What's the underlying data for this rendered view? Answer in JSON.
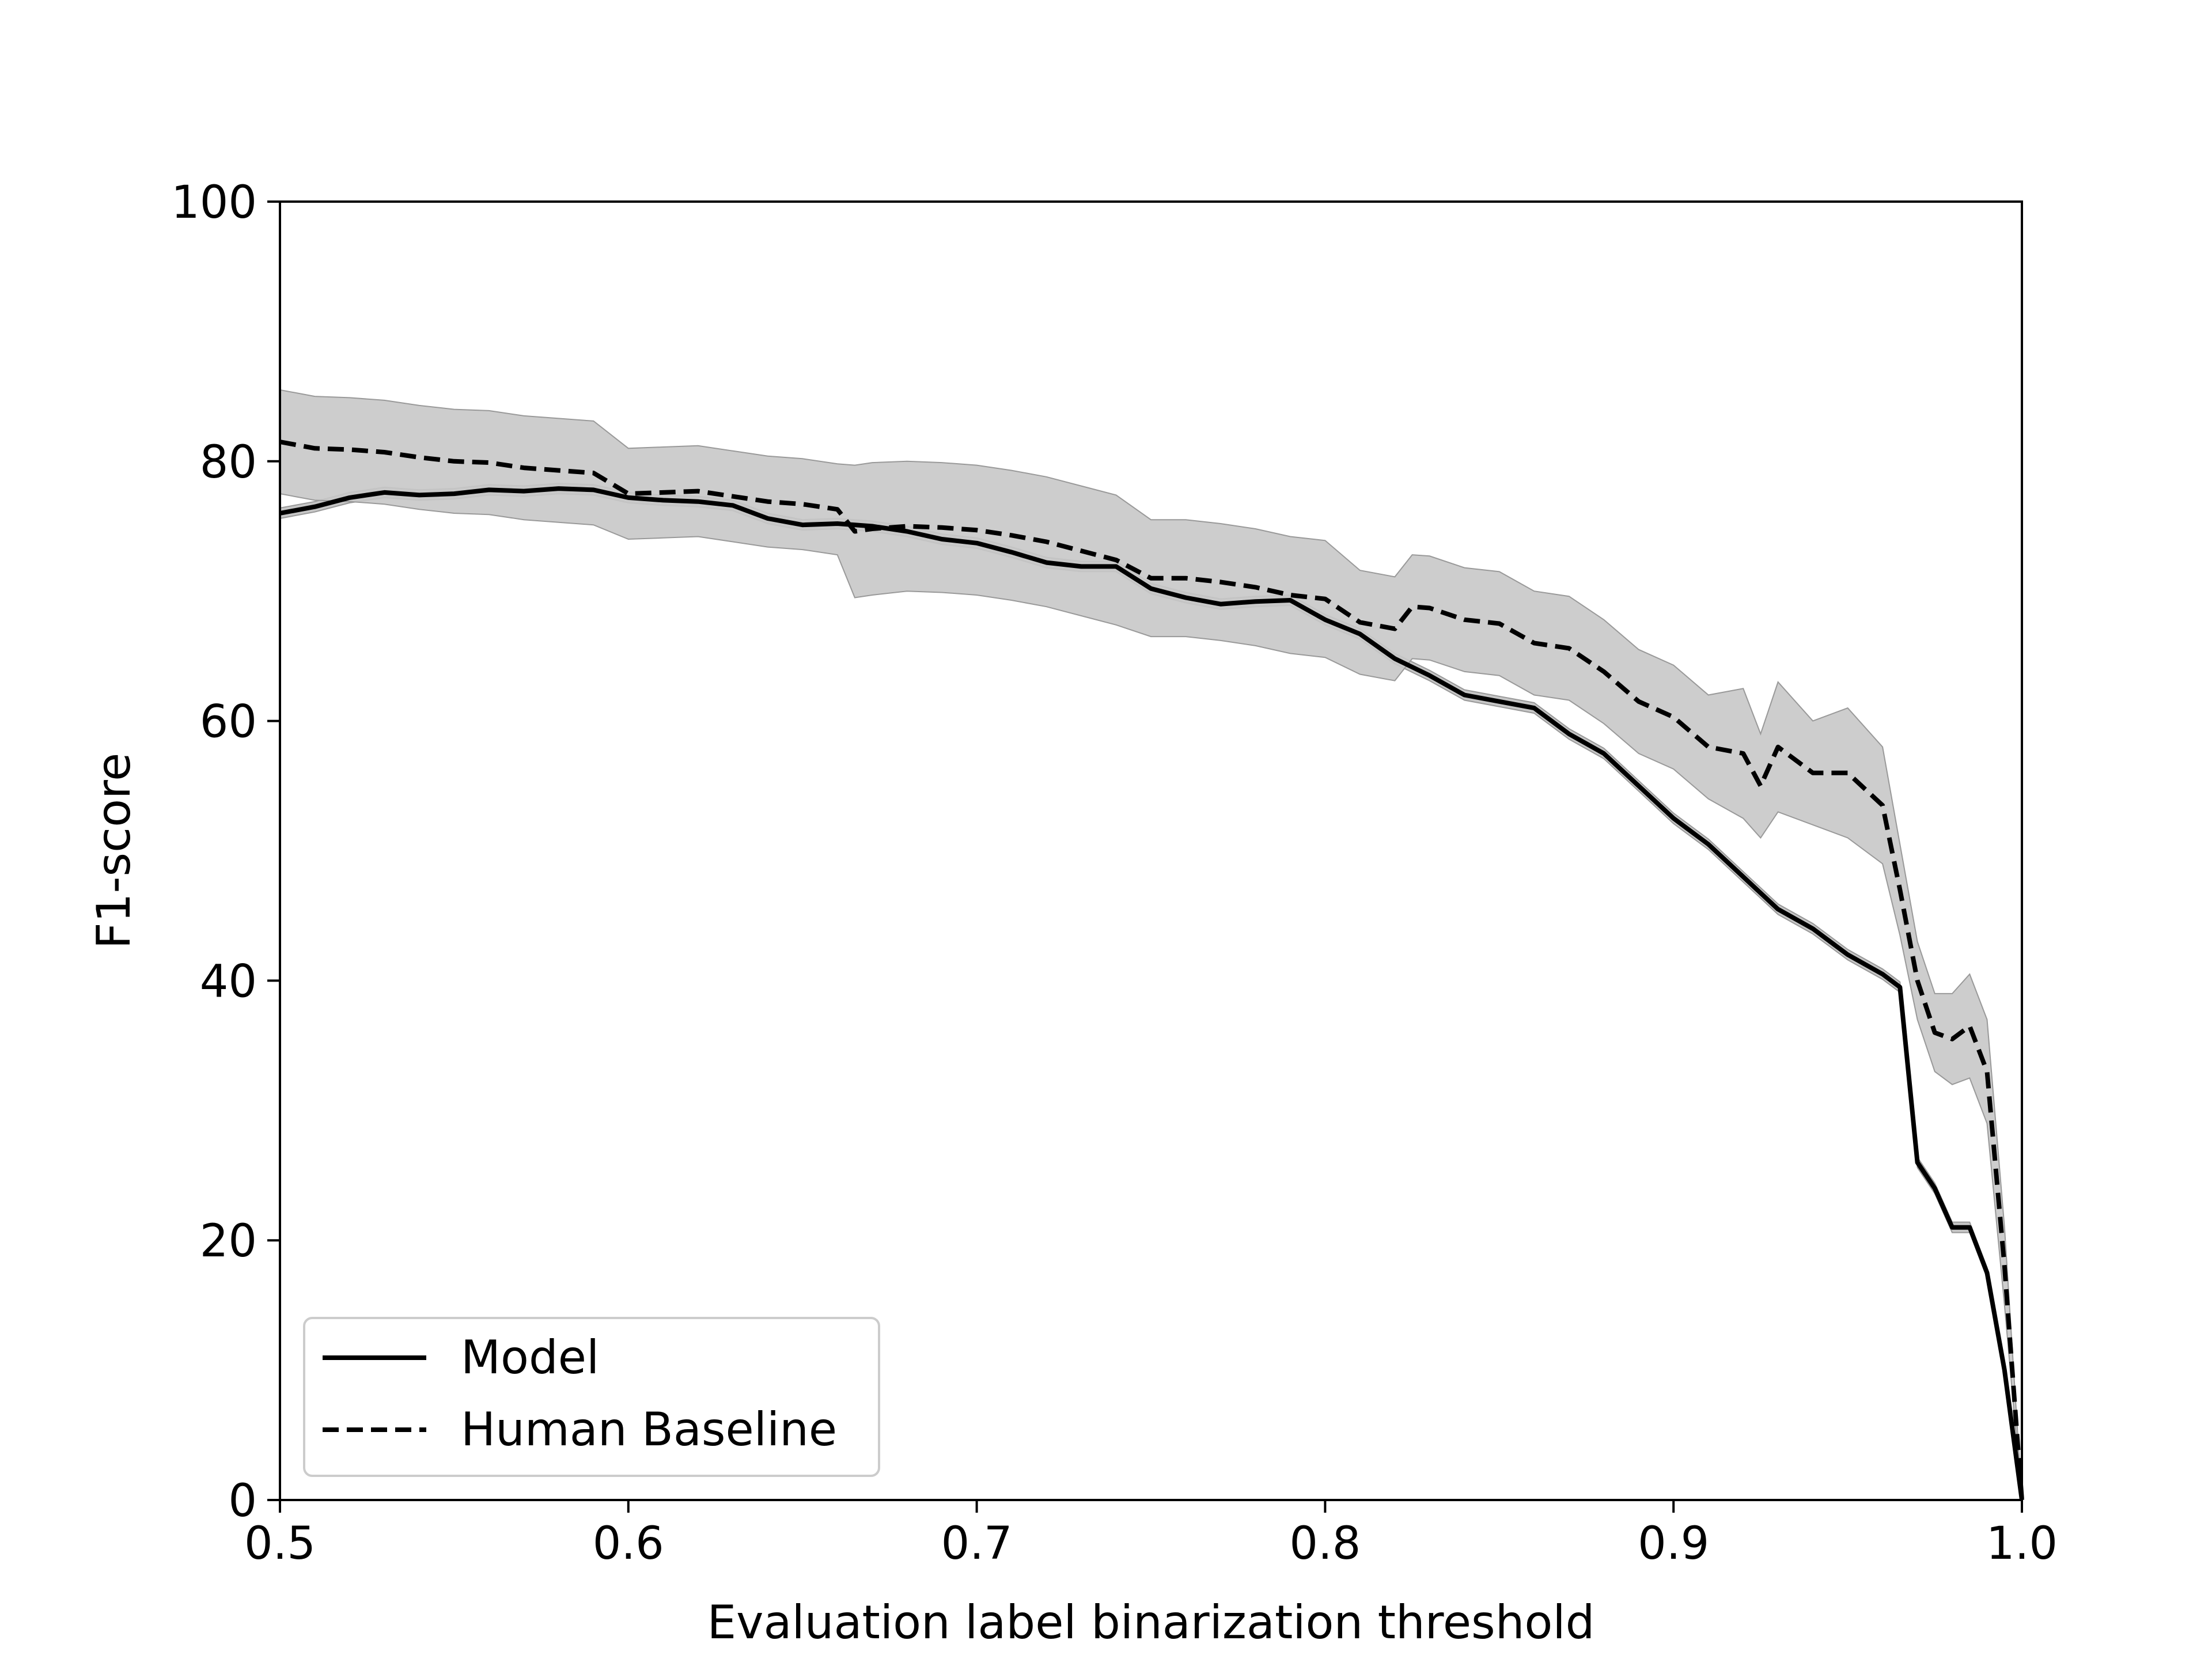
{
  "chart_data": {
    "type": "line",
    "title": "",
    "xlabel": "Evaluation label binarization threshold",
    "ylabel": "F1-score",
    "xlim": [
      0.5,
      1.0
    ],
    "ylim": [
      0,
      100
    ],
    "xticks": [
      0.5,
      0.6,
      0.7,
      0.8,
      0.9,
      1.0
    ],
    "xtick_labels": [
      "0.5",
      "0.6",
      "0.7",
      "0.8",
      "0.9",
      "1.0"
    ],
    "yticks": [
      0,
      20,
      40,
      60,
      80,
      100
    ],
    "ytick_labels": [
      "0",
      "20",
      "40",
      "60",
      "80",
      "100"
    ],
    "grid": false,
    "legend_position": "lower-left",
    "series": [
      {
        "name": "Model",
        "style": "solid",
        "color": "#000000",
        "band_color": "#808080",
        "x": [
          0.5,
          0.51,
          0.52,
          0.53,
          0.54,
          0.55,
          0.56,
          0.57,
          0.58,
          0.59,
          0.6,
          0.61,
          0.62,
          0.63,
          0.64,
          0.65,
          0.66,
          0.67,
          0.68,
          0.69,
          0.7,
          0.71,
          0.72,
          0.73,
          0.74,
          0.75,
          0.76,
          0.77,
          0.78,
          0.79,
          0.8,
          0.81,
          0.82,
          0.83,
          0.84,
          0.85,
          0.86,
          0.87,
          0.88,
          0.89,
          0.9,
          0.91,
          0.92,
          0.93,
          0.94,
          0.95,
          0.96,
          0.965,
          0.97,
          0.975,
          0.98,
          0.985,
          0.99,
          0.995,
          1.0
        ],
        "y": [
          76,
          76.5,
          77.2,
          77.6,
          77.4,
          77.5,
          77.8,
          77.7,
          77.9,
          77.8,
          77.2,
          77.0,
          76.9,
          76.6,
          75.6,
          75.1,
          75.2,
          75.0,
          74.6,
          74.0,
          73.7,
          73.0,
          72.2,
          71.9,
          71.9,
          70.2,
          69.5,
          69.0,
          69.2,
          69.3,
          67.8,
          66.7,
          64.8,
          63.5,
          62.0,
          61.5,
          61.0,
          59.0,
          57.5,
          55.0,
          52.5,
          50.5,
          48.0,
          45.5,
          44.0,
          42.0,
          40.5,
          39.5,
          26.0,
          24.0,
          21.0,
          21.0,
          17.5,
          10.0,
          0
        ],
        "y_lower": [
          75.6,
          76.1,
          76.8,
          77.2,
          77.0,
          77.1,
          77.4,
          77.3,
          77.5,
          77.4,
          76.8,
          76.6,
          76.5,
          76.2,
          75.2,
          74.7,
          74.8,
          74.6,
          74.2,
          73.6,
          73.3,
          72.6,
          71.8,
          71.5,
          71.5,
          69.8,
          69.1,
          68.6,
          68.8,
          68.9,
          67.4,
          66.3,
          64.4,
          63.1,
          61.6,
          61.1,
          60.6,
          58.6,
          57.1,
          54.6,
          52.1,
          50.1,
          47.6,
          45.1,
          43.6,
          41.6,
          40.1,
          39.1,
          25.6,
          23.6,
          20.6,
          20.6,
          17.1,
          9.6,
          0
        ],
        "y_upper": [
          76.4,
          76.9,
          77.6,
          78.0,
          77.8,
          77.9,
          78.2,
          78.1,
          78.3,
          78.2,
          77.6,
          77.4,
          77.3,
          77.0,
          76.0,
          75.5,
          75.6,
          75.4,
          75.0,
          74.4,
          74.1,
          73.4,
          72.6,
          72.3,
          72.3,
          70.6,
          69.9,
          69.4,
          69.6,
          69.7,
          68.2,
          67.1,
          65.2,
          63.9,
          62.4,
          61.9,
          61.4,
          59.4,
          57.9,
          55.4,
          52.9,
          50.9,
          48.4,
          45.9,
          44.4,
          42.4,
          40.9,
          39.9,
          26.4,
          24.4,
          21.4,
          21.4,
          17.9,
          10.4,
          0.4
        ]
      },
      {
        "name": "Human Baseline",
        "style": "dashed",
        "color": "#000000",
        "band_color": "#c8c8c8",
        "x": [
          0.5,
          0.51,
          0.52,
          0.53,
          0.54,
          0.55,
          0.56,
          0.57,
          0.58,
          0.59,
          0.6,
          0.61,
          0.62,
          0.63,
          0.64,
          0.65,
          0.66,
          0.665,
          0.67,
          0.68,
          0.69,
          0.7,
          0.71,
          0.72,
          0.73,
          0.74,
          0.75,
          0.76,
          0.77,
          0.78,
          0.79,
          0.8,
          0.81,
          0.82,
          0.825,
          0.83,
          0.84,
          0.85,
          0.86,
          0.87,
          0.88,
          0.89,
          0.9,
          0.91,
          0.92,
          0.925,
          0.93,
          0.94,
          0.95,
          0.96,
          0.965,
          0.97,
          0.975,
          0.98,
          0.985,
          0.99,
          0.995,
          1.0
        ],
        "y": [
          81.5,
          81.0,
          80.9,
          80.7,
          80.3,
          80.0,
          79.9,
          79.5,
          79.3,
          79.1,
          77.5,
          77.6,
          77.7,
          77.3,
          76.9,
          76.7,
          76.3,
          74.6,
          74.8,
          75.0,
          74.9,
          74.7,
          74.3,
          73.8,
          73.1,
          72.4,
          71.0,
          71.0,
          70.7,
          70.3,
          69.7,
          69.4,
          67.6,
          67.1,
          68.8,
          68.7,
          67.8,
          67.5,
          66.0,
          65.6,
          63.8,
          61.5,
          60.3,
          58.0,
          57.5,
          55.0,
          58.0,
          56.0,
          56.0,
          53.5,
          47.0,
          40.0,
          36.0,
          35.5,
          36.5,
          33.0,
          18.0,
          0
        ],
        "y_lower": [
          77.5,
          77.0,
          76.9,
          76.7,
          76.3,
          76.0,
          75.9,
          75.5,
          75.3,
          75.1,
          74.0,
          74.1,
          74.2,
          73.8,
          73.4,
          73.2,
          72.8,
          69.5,
          69.7,
          70.0,
          69.9,
          69.7,
          69.3,
          68.8,
          68.1,
          67.4,
          66.5,
          66.5,
          66.2,
          65.8,
          65.2,
          64.9,
          63.6,
          63.1,
          64.8,
          64.7,
          63.8,
          63.5,
          62.0,
          61.6,
          59.8,
          57.5,
          56.3,
          54.0,
          52.5,
          51.0,
          53.0,
          52.0,
          51.0,
          49.0,
          43.5,
          37.0,
          33.0,
          32.0,
          32.5,
          29.0,
          15.0,
          0
        ],
        "y_upper": [
          85.5,
          85.0,
          84.9,
          84.7,
          84.3,
          84.0,
          83.9,
          83.5,
          83.3,
          83.1,
          81.0,
          81.1,
          81.2,
          80.8,
          80.4,
          80.2,
          79.8,
          79.7,
          79.9,
          80.0,
          79.9,
          79.7,
          79.3,
          78.8,
          78.1,
          77.4,
          75.5,
          75.5,
          75.2,
          74.8,
          74.2,
          73.9,
          71.6,
          71.1,
          72.8,
          72.7,
          71.8,
          71.5,
          70.0,
          69.6,
          67.8,
          65.5,
          64.3,
          62.0,
          62.5,
          59.0,
          63.0,
          60.0,
          61.0,
          58.0,
          50.5,
          43.0,
          39.0,
          39.0,
          40.5,
          37.0,
          21.0,
          0
        ]
      }
    ]
  }
}
